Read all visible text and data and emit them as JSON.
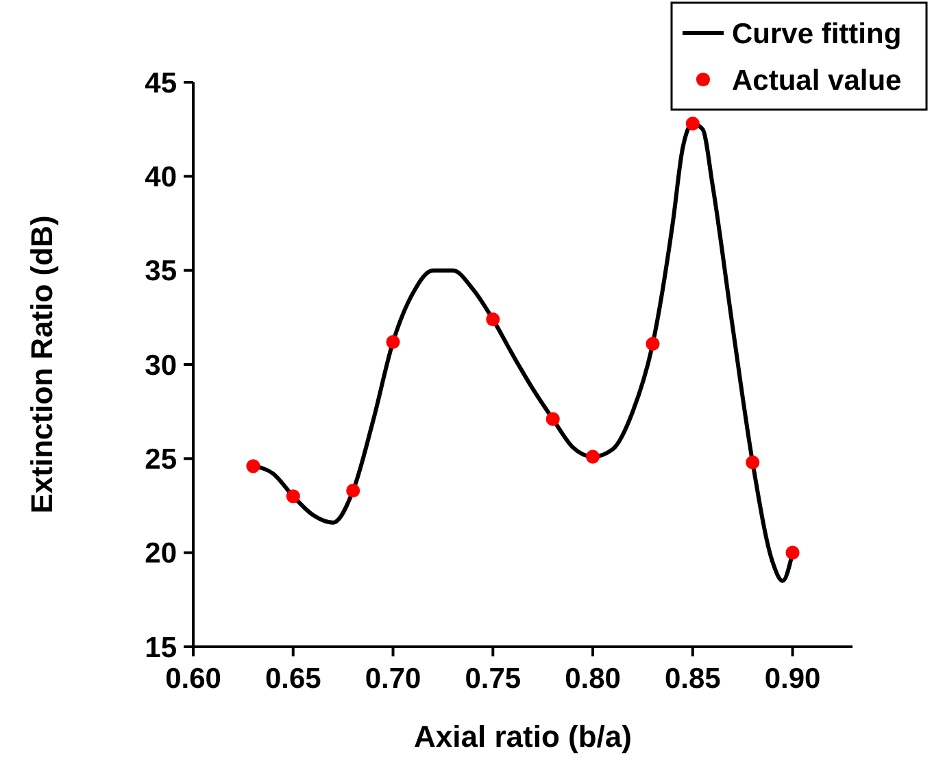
{
  "chart_data": {
    "type": "line",
    "xlabel": "Axial ratio (b/a)",
    "ylabel": "Extinction Ratio (dB)",
    "xlim": [
      0.6,
      0.93
    ],
    "xticks": [
      {
        "value": 0.6,
        "label": "0.60"
      },
      {
        "value": 0.65,
        "label": "0.65"
      },
      {
        "value": 0.7,
        "label": "0.70"
      },
      {
        "value": 0.75,
        "label": "0.75"
      },
      {
        "value": 0.8,
        "label": "0.80"
      },
      {
        "value": 0.85,
        "label": "0.85"
      },
      {
        "value": 0.9,
        "label": "0.90"
      }
    ],
    "ylim": [
      15,
      45
    ],
    "yticks": [
      15,
      20,
      25,
      30,
      35,
      40,
      45
    ],
    "grid": false,
    "legend": "top right",
    "series": [
      {
        "name": "Curve fitting",
        "color": "#000000",
        "line_style": "solid",
        "x": [
          0.63,
          0.64,
          0.65,
          0.66,
          0.67,
          0.68,
          0.69,
          0.7,
          0.71,
          0.72,
          0.73,
          0.74,
          0.75,
          0.76,
          0.77,
          0.78,
          0.79,
          0.8,
          0.81,
          0.82,
          0.83,
          0.84,
          0.845,
          0.85,
          0.855,
          0.86,
          0.87,
          0.88,
          0.89,
          0.895,
          0.9
        ],
        "values": [
          24.6,
          24.2,
          23.0,
          22.0,
          21.6,
          23.3,
          27.0,
          31.2,
          33.8,
          35.0,
          35.0,
          34.0,
          32.4,
          30.5,
          28.7,
          27.1,
          25.6,
          25.1,
          25.5,
          27.5,
          31.1,
          37.5,
          41.5,
          42.8,
          42.5,
          39.5,
          32.0,
          24.8,
          19.5,
          18.5,
          20.0
        ]
      },
      {
        "name": "Actual value",
        "type": "scatter",
        "color": "#ff0000",
        "marker": "circle",
        "x": [
          0.63,
          0.65,
          0.68,
          0.7,
          0.75,
          0.78,
          0.8,
          0.83,
          0.85,
          0.88,
          0.9
        ],
        "values": [
          24.6,
          23.0,
          23.3,
          31.2,
          32.4,
          27.1,
          25.1,
          31.1,
          42.8,
          24.8,
          20.0
        ]
      }
    ]
  }
}
